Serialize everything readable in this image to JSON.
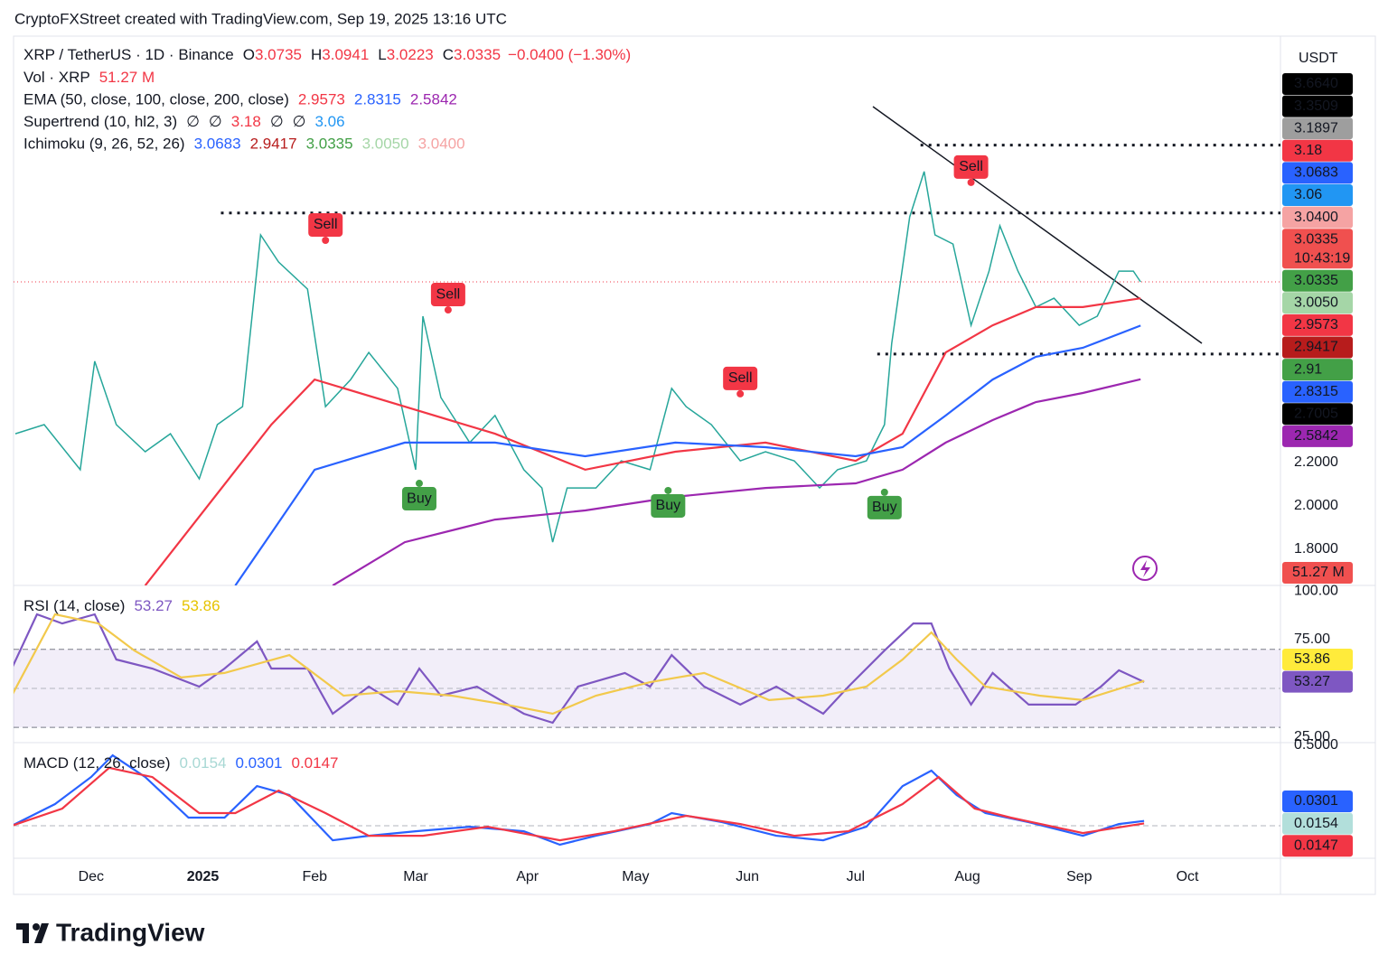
{
  "header": {
    "attribution": "CryptoFXStreet created with TradingView.com, Sep 19, 2025 13:16 UTC"
  },
  "footer": {
    "logo": "TradingView"
  },
  "price_axis": {
    "currency": "USDT",
    "badges": [
      {
        "label": "3.6640",
        "color": "#000000",
        "text_color": "#ffffff"
      },
      {
        "label": "3.3509",
        "color": "#000000",
        "text_color": "#ffffff"
      },
      {
        "label": "3.1897",
        "color": "#9e9e9e",
        "text_color": "#131722"
      },
      {
        "label": "3.18",
        "color": "#f23645",
        "text_color": "#ffffff"
      },
      {
        "label": "3.0683",
        "color": "#2962ff",
        "text_color": "#ffffff"
      },
      {
        "label": "3.06",
        "color": "#2196f3",
        "text_color": "#ffffff"
      },
      {
        "label": "3.0400",
        "color": "#f5a3a3",
        "text_color": "#131722"
      },
      {
        "label": "3.0335",
        "sub": "10:43:19",
        "color": "#f0504f",
        "text_color": "#ffffff"
      },
      {
        "label": "3.0335",
        "color": "#43a047",
        "text_color": "#ffffff"
      },
      {
        "label": "3.0050",
        "color": "#a5d6a7",
        "text_color": "#131722"
      },
      {
        "label": "2.9573",
        "color": "#f23645",
        "text_color": "#ffffff"
      },
      {
        "label": "2.9417",
        "color": "#b71c1c",
        "text_color": "#ffffff"
      },
      {
        "label": "2.91",
        "color": "#43a047",
        "text_color": "#ffffff"
      },
      {
        "label": "2.8315",
        "color": "#2962ff",
        "text_color": "#ffffff"
      },
      {
        "label": "2.7005",
        "color": "#000000",
        "text_color": "#ffffff"
      },
      {
        "label": "2.5842",
        "color": "#9c27b0",
        "text_color": "#ffffff"
      }
    ],
    "volume_badge": {
      "label": "51.27 M",
      "color": "#f0504f",
      "text_color": "#ffffff"
    }
  },
  "chart_data": [
    {
      "type": "line",
      "title": "XRP / TetherUS · 1D · Binance",
      "ohlc": {
        "labels": [
          "O",
          "H",
          "L",
          "C"
        ],
        "values": [
          "3.0735",
          "3.0941",
          "3.0223",
          "3.0335"
        ],
        "color": "#f23645"
      },
      "change": "−0.0400 (−1.30%)",
      "indicators": [
        {
          "name": "Vol · XRP",
          "readouts": [
            "51.27 M"
          ],
          "colors": [
            "#f23645"
          ]
        },
        {
          "name": "EMA (50, close, 100, close, 200, close)",
          "readouts": [
            "2.9573",
            "2.8315",
            "2.5842"
          ],
          "colors": [
            "#f23645",
            "#2962ff",
            "#9c27b0"
          ]
        },
        {
          "name": "Supertrend (10, hl2, 3)",
          "readouts": [
            "∅",
            "∅",
            "3.18",
            "∅",
            "∅",
            "3.06"
          ],
          "colors": [
            "#131722",
            "#131722",
            "#f23645",
            "#131722",
            "#131722",
            "#2196f3"
          ]
        },
        {
          "name": "Ichimoku (9, 26, 52, 26)",
          "readouts": [
            "3.0683",
            "2.9417",
            "3.0335",
            "3.0050",
            "3.0400"
          ],
          "colors": [
            "#2962ff",
            "#b71c1c",
            "#43a047",
            "#a5d6a7",
            "#f5a3a3"
          ]
        }
      ],
      "xlim": [
        8.5,
        359.8
      ],
      "xticks": [
        {
          "value": 30,
          "label": "Dec"
        },
        {
          "value": 61,
          "label": "2025",
          "bold": true
        },
        {
          "value": 92,
          "label": "Feb"
        },
        {
          "value": 120,
          "label": "Mar"
        },
        {
          "value": 151,
          "label": "Apr"
        },
        {
          "value": 181,
          "label": "May"
        },
        {
          "value": 212,
          "label": "Jun"
        },
        {
          "value": 242,
          "label": "Jul"
        },
        {
          "value": 273,
          "label": "Aug"
        },
        {
          "value": 304,
          "label": "Sep"
        },
        {
          "value": 334,
          "label": "Oct"
        }
      ],
      "ylim": [
        1.6333,
        4.1667
      ],
      "yticks": [
        {
          "value": 2.2,
          "label": "2.2000"
        },
        {
          "value": 2.0,
          "label": "2.0000"
        },
        {
          "value": 1.8,
          "label": "1.8000"
        }
      ],
      "series": [
        {
          "color": "#26a69a",
          "x": [
            9,
            17,
            27,
            31,
            37,
            45,
            52,
            60,
            65,
            72,
            77,
            82,
            90,
            95,
            102,
            107,
            115,
            120,
            122,
            127,
            135,
            142,
            150,
            155,
            158,
            162,
            170,
            177,
            185,
            191,
            195,
            202,
            210,
            217,
            225,
            232,
            237,
            245,
            250,
            252,
            257,
            261,
            264,
            269,
            274,
            279,
            282,
            287,
            292,
            297,
            304,
            309,
            315,
            319,
            321
          ],
          "values": [
            2.333,
            2.375,
            2.167,
            2.667,
            2.375,
            2.25,
            2.333,
            2.125,
            2.375,
            2.458,
            3.25,
            3.125,
            3.0,
            2.458,
            2.583,
            2.708,
            2.542,
            2.167,
            2.875,
            2.5,
            2.292,
            2.417,
            2.167,
            2.083,
            1.833,
            2.083,
            2.083,
            2.208,
            2.167,
            2.542,
            2.458,
            2.375,
            2.208,
            2.25,
            2.208,
            2.083,
            2.167,
            2.208,
            2.375,
            2.75,
            3.333,
            3.542,
            3.25,
            3.208,
            2.833,
            3.083,
            3.292,
            3.083,
            2.917,
            2.958,
            2.833,
            2.875,
            3.083,
            3.083,
            3.0335
          ]
        },
        {
          "color": "#f23645",
          "x": [
            45,
            80,
            92,
            117,
            142,
            167,
            192,
            217,
            242,
            255,
            267,
            280,
            292,
            305,
            321
          ],
          "values": [
            1.633,
            2.375,
            2.583,
            2.458,
            2.333,
            2.167,
            2.25,
            2.292,
            2.208,
            2.333,
            2.708,
            2.833,
            2.917,
            2.917,
            2.9573
          ]
        },
        {
          "color": "#2962ff",
          "x": [
            70,
            80,
            92,
            117,
            142,
            167,
            192,
            217,
            242,
            255,
            267,
            280,
            292,
            305,
            321
          ],
          "values": [
            1.633,
            1.875,
            2.167,
            2.292,
            2.292,
            2.229,
            2.292,
            2.271,
            2.229,
            2.271,
            2.417,
            2.583,
            2.688,
            2.729,
            2.8315
          ]
        },
        {
          "color": "#9c27b0",
          "x": [
            97,
            117,
            142,
            167,
            192,
            217,
            242,
            255,
            267,
            280,
            292,
            305,
            321
          ],
          "values": [
            1.633,
            1.833,
            1.937,
            1.979,
            2.042,
            2.083,
            2.104,
            2.167,
            2.292,
            2.396,
            2.479,
            2.521,
            2.5842
          ]
        }
      ],
      "levels": [
        {
          "value": 3.664,
          "from": 260
        },
        {
          "value": 3.3509,
          "from": 66
        },
        {
          "value": 2.7005,
          "from": 248
        }
      ],
      "last_price_line": 3.0335,
      "annotations": [
        {
          "text": "Sell",
          "x": 95,
          "y": 3.225,
          "color": "#f23645"
        },
        {
          "text": "Sell",
          "x": 129,
          "y": 2.904,
          "color": "#f23645"
        },
        {
          "text": "Sell",
          "x": 210,
          "y": 2.517,
          "color": "#f23645"
        },
        {
          "text": "Sell",
          "x": 274,
          "y": 3.492,
          "color": "#f23645"
        },
        {
          "text": "Buy",
          "x": 121,
          "y": 2.104,
          "color": "#43a047"
        },
        {
          "text": "Buy",
          "x": 190,
          "y": 2.071,
          "color": "#43a047"
        },
        {
          "text": "Buy",
          "x": 250,
          "y": 2.063,
          "color": "#43a047"
        }
      ]
    },
    {
      "type": "line",
      "title": "RSI (14, close)",
      "readouts": [
        "53.27",
        "53.86"
      ],
      "colors": [
        "#7e57c2",
        "#e6c300"
      ],
      "ylim": [
        22.2,
        102.8
      ],
      "yticks": [
        {
          "value": 100,
          "label": "100.00"
        },
        {
          "value": 75,
          "label": "75.00"
        },
        {
          "value": 25,
          "label": "25.00"
        }
      ],
      "band": [
        30,
        70
      ],
      "series": [
        {
          "color": "#7e57c2",
          "x": [
            8,
            15,
            22,
            31,
            37,
            47,
            60,
            67,
            76,
            80,
            90,
            97,
            107,
            115,
            121,
            127,
            137,
            150,
            158,
            165,
            178,
            185,
            191,
            200,
            210,
            220,
            233,
            240,
            250,
            258,
            263,
            268,
            274,
            280,
            290,
            303,
            310,
            315,
            322
          ],
          "values": [
            60.2,
            88.0,
            83.3,
            88.0,
            64.8,
            60.2,
            50.9,
            60.2,
            74.1,
            60.2,
            60.2,
            37.0,
            50.9,
            41.7,
            60.2,
            46.3,
            50.9,
            37.0,
            32.4,
            50.9,
            57.9,
            50.9,
            67.1,
            50.9,
            41.7,
            50.9,
            37.0,
            50.9,
            69.4,
            83.3,
            83.3,
            60.2,
            41.7,
            57.9,
            41.7,
            41.7,
            50.9,
            59.3,
            53.27
          ]
        },
        {
          "color": "#f2c94c",
          "x": [
            8,
            20,
            32,
            42,
            55,
            67,
            85,
            100,
            115,
            130,
            145,
            158,
            170,
            185,
            200,
            218,
            233,
            245,
            255,
            263,
            270,
            278,
            293,
            305,
            322
          ],
          "values": [
            46.3,
            88.0,
            83.3,
            69.4,
            55.6,
            57.9,
            67.1,
            46.3,
            48.6,
            46.3,
            41.7,
            37.0,
            46.3,
            53.2,
            57.9,
            44.0,
            46.3,
            50.9,
            64.8,
            78.7,
            64.8,
            50.9,
            46.3,
            44.0,
            53.86
          ]
        }
      ],
      "badges": [
        {
          "label": "53.86",
          "color": "#ffeb3b",
          "text_color": "#131722"
        },
        {
          "label": "53.27",
          "color": "#7e57c2",
          "text_color": "#ffffff"
        }
      ]
    },
    {
      "type": "line",
      "title": "MACD (12, 26, close)",
      "readouts": [
        "0.0154",
        "0.0301",
        "0.0147"
      ],
      "colors": [
        "#a8d8d4",
        "#2962ff",
        "#f23645"
      ],
      "ylim": [
        -0.202,
        0.517
      ],
      "yticks": [
        {
          "value": 0.5,
          "label": "0.5000"
        }
      ],
      "series": [
        {
          "color": "#2962ff",
          "x": [
            8,
            20,
            30,
            36,
            45,
            57,
            67,
            76,
            85,
            97,
            107,
            120,
            135,
            150,
            160,
            170,
            185,
            191,
            205,
            220,
            233,
            245,
            255,
            263,
            270,
            278,
            290,
            305,
            315,
            322
          ],
          "values": [
            0,
            0.135,
            0.303,
            0.438,
            0.303,
            0.051,
            0.051,
            0.247,
            0.191,
            -0.09,
            -0.062,
            -0.034,
            -0.006,
            -0.034,
            -0.118,
            -0.062,
            0.011,
            0.079,
            0.022,
            -0.062,
            -0.09,
            -0.006,
            0.247,
            0.343,
            0.191,
            0.079,
            0.022,
            -0.062,
            0.011,
            0.0301
          ]
        },
        {
          "color": "#f23645",
          "x": [
            8,
            22,
            35,
            47,
            60,
            70,
            82,
            95,
            107,
            122,
            140,
            160,
            175,
            195,
            210,
            225,
            240,
            255,
            265,
            275,
            285,
            305,
            322
          ],
          "values": [
            0,
            0.107,
            0.36,
            0.303,
            0.079,
            0.079,
            0.219,
            0.079,
            -0.062,
            -0.062,
            -0.006,
            -0.09,
            -0.034,
            0.062,
            0.011,
            -0.062,
            -0.034,
            0.135,
            0.303,
            0.107,
            0.051,
            -0.045,
            0.0147
          ]
        }
      ],
      "badges": [
        {
          "label": "0.0301",
          "color": "#2962ff",
          "text_color": "#ffffff"
        },
        {
          "label": "0.0154",
          "color": "#b2dfdb",
          "text_color": "#131722"
        },
        {
          "label": "0.0147",
          "color": "#f23645",
          "text_color": "#ffffff"
        }
      ]
    }
  ]
}
